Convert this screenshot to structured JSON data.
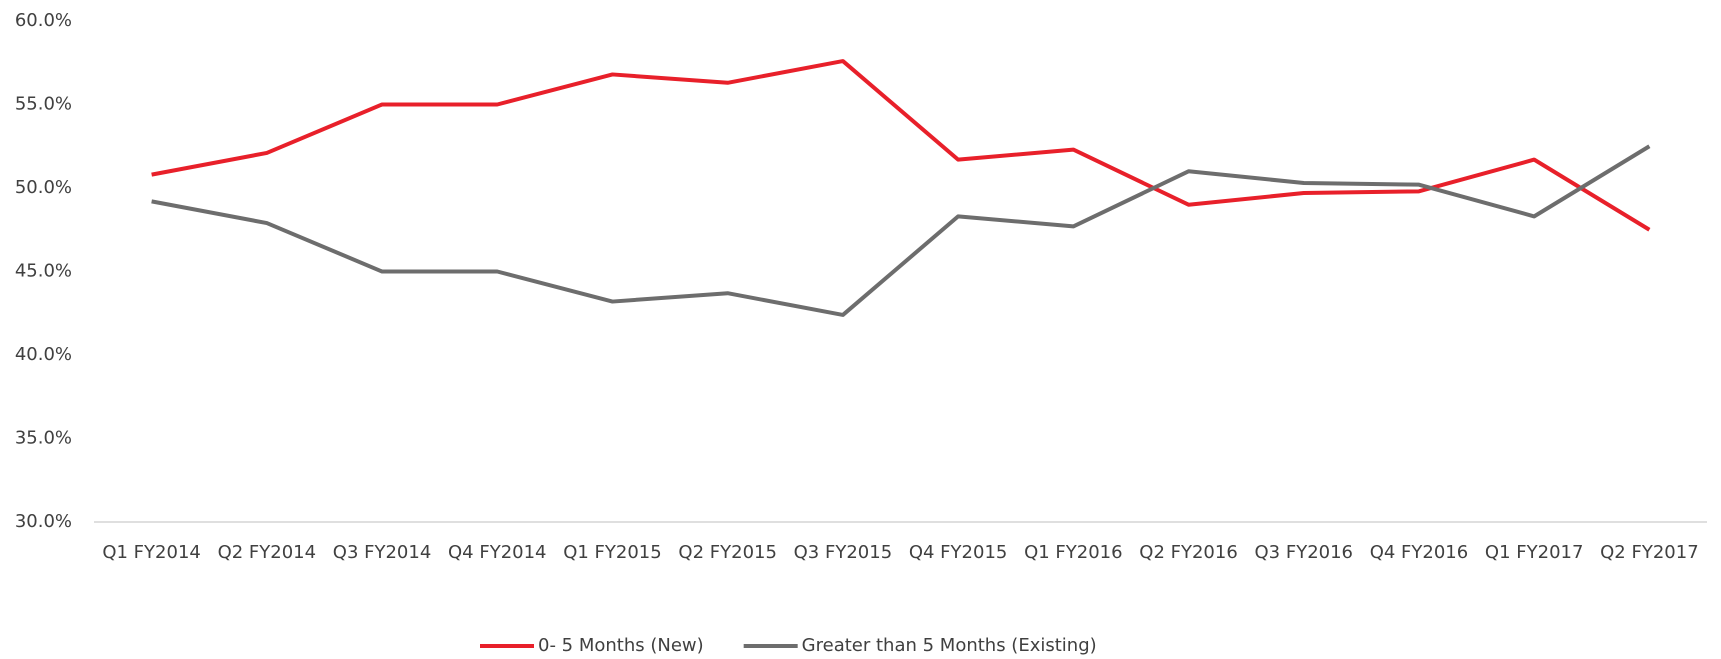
{
  "chart_data": {
    "type": "line",
    "categories": [
      "Q1 FY2014",
      "Q2 FY2014",
      "Q3 FY2014",
      "Q4 FY2014",
      "Q1 FY2015",
      "Q2 FY2015",
      "Q3 FY2015",
      "Q4 FY2015",
      "Q1 FY2016",
      "Q2 FY2016",
      "Q3 FY2016",
      "Q4 FY2016",
      "Q1 FY2017",
      "Q2 FY2017"
    ],
    "series": [
      {
        "name": "0- 5 Months (New)",
        "color": "#e8202a",
        "values": [
          50.8,
          52.1,
          55.0,
          55.0,
          56.8,
          56.3,
          57.6,
          51.7,
          52.3,
          49.0,
          49.7,
          49.8,
          51.7,
          47.5
        ]
      },
      {
        "name": "Greater than 5 Months (Existing)",
        "color": "#6d6d6d",
        "values": [
          49.2,
          47.9,
          45.0,
          45.0,
          43.2,
          43.7,
          42.4,
          48.3,
          47.7,
          51.0,
          50.3,
          50.2,
          48.3,
          52.5
        ]
      }
    ],
    "ylim": [
      30,
      60
    ],
    "yticks": [
      {
        "value": 30,
        "label": "30.0%"
      },
      {
        "value": 35,
        "label": "35.0%"
      },
      {
        "value": 40,
        "label": "40.0%"
      },
      {
        "value": 45,
        "label": "45.0%"
      },
      {
        "value": 50,
        "label": "50.0%"
      },
      {
        "value": 55,
        "label": "55.0%"
      },
      {
        "value": 60,
        "label": "60.0%"
      }
    ],
    "legend": "bottom"
  }
}
